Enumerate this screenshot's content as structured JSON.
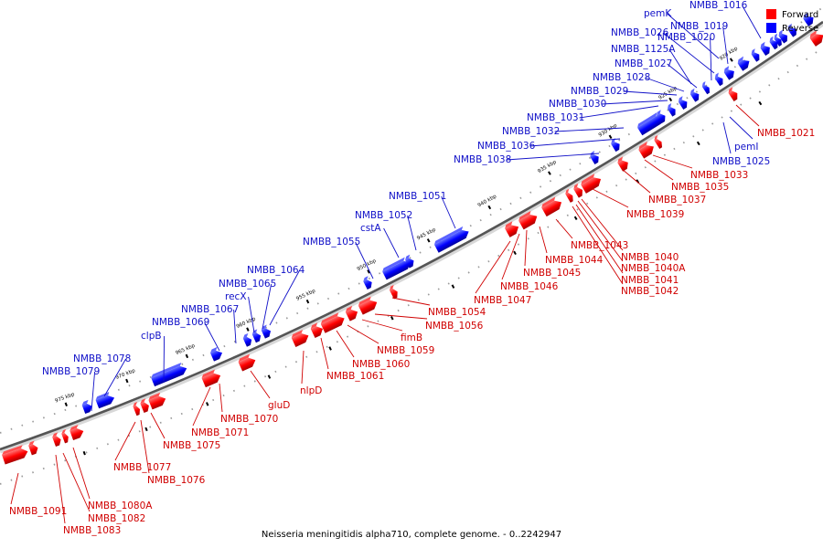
{
  "caption": "Neisseria meningitidis alpha710, complete genome. - 0..2242947",
  "legend": {
    "forward": "Forward",
    "reverse": "Reverse"
  },
  "colors": {
    "forward": "#ff0000",
    "reverse": "#0000ff",
    "forward_label": "#d00000",
    "reverse_label": "#1010c8",
    "backbone": "#555555"
  },
  "ticks": [
    "920 kbp",
    "925 kbp",
    "930 kbp",
    "935 kbp",
    "940 kbp",
    "945 kbp",
    "950 kbp",
    "955 kbp",
    "960 kbp",
    "965 kbp",
    "970 kbp",
    "975 kbp"
  ],
  "reverse_labels": [
    "NMBB_1016",
    "pemK",
    "NMBB_1019",
    "NMBB_1026",
    "NMBB_1020",
    "NMBB_1125A",
    "NMBB_1027",
    "NMBB_1028",
    "NMBB_1029",
    "NMBB_1030",
    "NMBB_1031",
    "NMBB_1032",
    "NMBB_1036",
    "NMBB_1038",
    "NMBB_1051",
    "NMBB_1052",
    "cstA",
    "NMBB_1055",
    "NMBB_1064",
    "NMBB_1065",
    "recX",
    "NMBB_1067",
    "NMBB_1069",
    "clpB",
    "NMBB_1078",
    "NMBB_1079",
    "pemI",
    "NMBB_1025"
  ],
  "forward_labels": [
    "NMBB_1021",
    "NMBB_1033",
    "NMBB_1035",
    "NMBB_1037",
    "NMBB_1039",
    "NMBB_1043",
    "NMBB_1040",
    "NMBB_1040A",
    "NMBB_1041",
    "NMBB_1042",
    "NMBB_1044",
    "NMBB_1045",
    "NMBB_1046",
    "NMBB_1047",
    "NMBB_1054",
    "NMBB_1056",
    "fimB",
    "NMBB_1059",
    "NMBB_1060",
    "NMBB_1061",
    "nlpD",
    "gluD",
    "NMBB_1070",
    "NMBB_1071",
    "NMBB_1075",
    "NMBB_1077",
    "NMBB_1076",
    "NMBB_1080A",
    "NMBB_1082",
    "NMBB_1083",
    "NMBB_1091"
  ]
}
